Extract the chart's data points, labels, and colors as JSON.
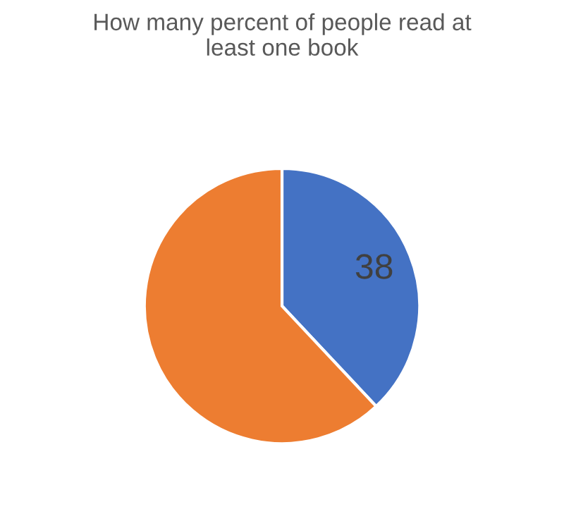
{
  "chart_data": {
    "type": "pie",
    "title": "How many percent of people read at least one book",
    "categories": [
      null,
      null
    ],
    "values": [
      38,
      62
    ],
    "colors": [
      "#4472c4",
      "#ed7d31"
    ],
    "value_labels": [
      "38",
      null
    ]
  }
}
